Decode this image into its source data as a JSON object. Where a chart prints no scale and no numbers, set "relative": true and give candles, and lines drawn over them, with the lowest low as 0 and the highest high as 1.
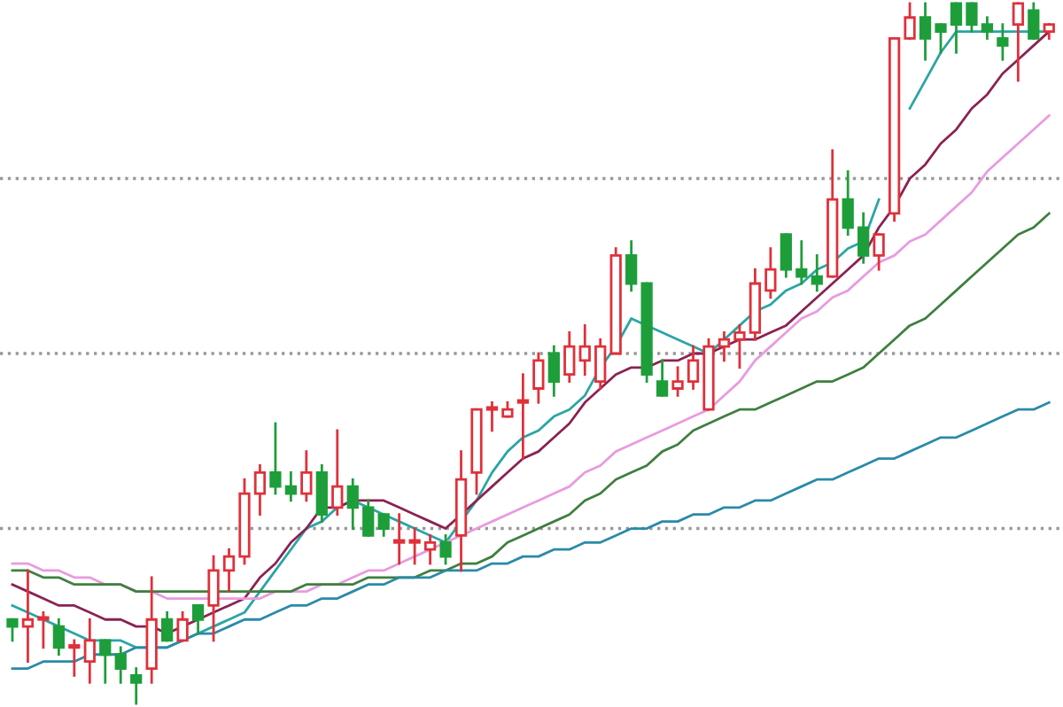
{
  "chart_data": {
    "type": "candlestick",
    "relative": true,
    "categories": [
      null,
      null,
      null,
      null,
      null,
      null,
      null,
      null,
      null,
      null,
      null,
      null,
      null,
      null,
      null,
      null,
      null,
      null,
      null,
      null,
      null,
      null,
      null,
      null,
      null,
      null,
      null,
      null,
      null,
      null,
      null,
      null,
      null,
      null,
      null,
      null,
      null,
      null,
      null,
      null,
      null,
      null,
      null,
      null,
      null,
      null,
      null,
      null,
      null,
      null,
      null,
      null,
      null,
      null,
      null,
      null,
      null,
      null,
      null,
      null,
      null,
      null,
      null,
      null,
      null,
      null,
      null,
      null
    ],
    "colors": [
      "#1e9e3a",
      "#e0303a",
      "#e0303a",
      "#1e9e3a",
      "#e0303a",
      "#e0303a",
      "#1e9e3a",
      "#1e9e3a",
      "#1e9e3a",
      "#e0303a",
      "#1e9e3a",
      "#e0303a",
      "#1e9e3a",
      "#e0303a",
      "#e0303a",
      "#e0303a",
      "#e0303a",
      "#1e9e3a",
      "#1e9e3a",
      "#e0303a",
      "#1e9e3a",
      "#e0303a",
      "#1e9e3a",
      "#1e9e3a",
      "#1e9e3a",
      "#e0303a",
      "#e0303a",
      "#e0303a",
      "#1e9e3a",
      "#e0303a",
      "#e0303a",
      "#e0303a",
      "#e0303a",
      "#e0303a",
      "#e0303a",
      "#1e9e3a",
      "#e0303a",
      "#e0303a",
      "#e0303a",
      "#e0303a",
      "#1e9e3a",
      "#1e9e3a",
      "#1e9e3a",
      "#e0303a",
      "#e0303a",
      "#e0303a",
      "#e0303a",
      "#e0303a",
      "#e0303a",
      "#e0303a",
      "#1e9e3a",
      "#1e9e3a",
      "#1e9e3a",
      "#e0303a",
      "#1e9e3a",
      "#1e9e3a",
      "#e0303a",
      "#e0303a",
      "#e0303a",
      "#1e9e3a",
      "#1e9e3a",
      "#1e9e3a",
      "#1e9e3a",
      "#1e9e3a",
      "#1e9e3a",
      "#e0303a",
      "#1e9e3a",
      "#e0303a"
    ],
    "ohlc": [
      [
        0.12,
        0.12,
        0.09,
        0.11
      ],
      [
        0.11,
        0.19,
        0.06,
        0.12
      ],
      [
        0.12,
        0.13,
        0.08,
        0.12
      ],
      [
        0.11,
        0.12,
        0.07,
        0.08
      ],
      [
        0.08,
        0.09,
        0.04,
        0.08
      ],
      [
        0.06,
        0.12,
        0.03,
        0.09
      ],
      [
        0.09,
        0.09,
        0.03,
        0.07
      ],
      [
        0.07,
        0.08,
        0.03,
        0.05
      ],
      [
        0.04,
        0.05,
        0.0,
        0.03
      ],
      [
        0.05,
        0.18,
        0.03,
        0.12
      ],
      [
        0.12,
        0.13,
        0.09,
        0.09
      ],
      [
        0.09,
        0.13,
        0.09,
        0.12
      ],
      [
        0.14,
        0.14,
        0.1,
        0.12
      ],
      [
        0.14,
        0.21,
        0.09,
        0.19
      ],
      [
        0.19,
        0.22,
        0.16,
        0.21
      ],
      [
        0.21,
        0.32,
        0.2,
        0.3
      ],
      [
        0.3,
        0.34,
        0.27,
        0.33
      ],
      [
        0.33,
        0.4,
        0.3,
        0.31
      ],
      [
        0.31,
        0.33,
        0.29,
        0.3
      ],
      [
        0.3,
        0.36,
        0.29,
        0.33
      ],
      [
        0.33,
        0.34,
        0.26,
        0.27
      ],
      [
        0.28,
        0.39,
        0.27,
        0.31
      ],
      [
        0.31,
        0.32,
        0.25,
        0.28
      ],
      [
        0.28,
        0.29,
        0.24,
        0.24
      ],
      [
        0.27,
        0.27,
        0.24,
        0.25
      ],
      [
        0.23,
        0.27,
        0.2,
        0.23
      ],
      [
        0.23,
        0.25,
        0.2,
        0.23
      ],
      [
        0.22,
        0.24,
        0.2,
        0.23
      ],
      [
        0.23,
        0.24,
        0.2,
        0.21
      ],
      [
        0.24,
        0.36,
        0.19,
        0.32
      ],
      [
        0.33,
        0.42,
        0.3,
        0.42
      ],
      [
        0.42,
        0.43,
        0.39,
        0.42
      ],
      [
        0.41,
        0.43,
        0.41,
        0.42
      ],
      [
        0.43,
        0.47,
        0.35,
        0.43
      ],
      [
        0.45,
        0.5,
        0.43,
        0.49
      ],
      [
        0.5,
        0.51,
        0.44,
        0.46
      ],
      [
        0.47,
        0.53,
        0.46,
        0.51
      ],
      [
        0.49,
        0.54,
        0.47,
        0.51
      ],
      [
        0.46,
        0.52,
        0.45,
        0.51
      ],
      [
        0.5,
        0.65,
        0.5,
        0.64
      ],
      [
        0.64,
        0.66,
        0.59,
        0.6
      ],
      [
        0.6,
        0.6,
        0.46,
        0.47
      ],
      [
        0.46,
        0.49,
        0.44,
        0.44
      ],
      [
        0.45,
        0.48,
        0.44,
        0.46
      ],
      [
        0.46,
        0.51,
        0.45,
        0.49
      ],
      [
        0.42,
        0.52,
        0.42,
        0.51
      ],
      [
        0.51,
        0.53,
        0.49,
        0.52
      ],
      [
        0.52,
        0.54,
        0.48,
        0.53
      ],
      [
        0.53,
        0.62,
        0.52,
        0.6
      ],
      [
        0.59,
        0.65,
        0.58,
        0.62
      ],
      [
        0.67,
        0.67,
        0.61,
        0.62
      ],
      [
        0.62,
        0.66,
        0.6,
        0.61
      ],
      [
        0.61,
        0.64,
        0.59,
        0.6
      ],
      [
        0.61,
        0.79,
        0.61,
        0.72
      ],
      [
        0.72,
        0.76,
        0.67,
        0.68
      ],
      [
        0.68,
        0.7,
        0.63,
        0.64
      ],
      [
        0.64,
        0.67,
        0.62,
        0.67
      ],
      [
        0.7,
        0.95,
        0.69,
        0.95
      ],
      [
        0.95,
        1.0,
        0.95,
        0.98
      ],
      [
        0.98,
        1.0,
        0.92,
        0.95
      ],
      [
        0.97,
        0.97,
        0.93,
        0.96
      ],
      [
        1.0,
        1.0,
        0.93,
        0.97
      ],
      [
        1.0,
        1.0,
        0.96,
        0.97
      ],
      [
        0.97,
        0.98,
        0.95,
        0.96
      ],
      [
        0.95,
        0.97,
        0.92,
        0.94
      ],
      [
        0.97,
        1.0,
        0.89,
        1.0
      ],
      [
        0.99,
        1.0,
        0.95,
        0.95
      ],
      [
        0.96,
        0.97,
        0.95,
        0.97
      ]
    ],
    "series": [
      {
        "type": "line",
        "color": "#2aa5a5",
        "values": [
          0.14,
          0.13,
          0.12,
          0.11,
          0.1,
          0.09,
          0.09,
          0.09,
          0.08,
          0.08,
          0.08,
          0.09,
          0.1,
          0.11,
          0.12,
          0.13,
          0.16,
          0.19,
          0.22,
          0.25,
          0.26,
          0.28,
          0.29,
          0.28,
          0.27,
          0.26,
          0.25,
          0.24,
          0.23,
          0.26,
          0.29,
          0.33,
          0.36,
          0.38,
          0.39,
          0.41,
          0.42,
          0.44,
          0.48,
          0.51,
          0.55,
          0.54,
          0.53,
          0.52,
          0.51,
          0.5,
          0.52,
          0.54,
          0.56,
          0.57,
          0.59,
          0.6,
          0.62,
          0.63,
          0.65,
          0.66,
          0.72,
          null,
          0.85,
          0.89,
          0.93,
          0.96,
          0.96,
          0.96,
          0.96,
          0.96,
          0.96,
          0.96
        ]
      },
      {
        "type": "line",
        "color": "#8b2252",
        "values": [
          0.17,
          0.16,
          0.15,
          0.14,
          0.14,
          0.13,
          0.12,
          0.12,
          0.11,
          0.11,
          0.1,
          0.11,
          0.12,
          0.13,
          0.14,
          0.15,
          0.18,
          0.2,
          0.23,
          0.25,
          0.28,
          0.28,
          0.29,
          0.29,
          0.29,
          0.28,
          0.27,
          0.26,
          0.25,
          0.27,
          0.29,
          0.31,
          0.33,
          0.35,
          0.36,
          0.38,
          0.4,
          0.43,
          0.45,
          0.47,
          0.48,
          0.48,
          0.49,
          0.49,
          0.5,
          0.5,
          0.51,
          0.52,
          0.52,
          0.53,
          0.54,
          0.56,
          0.58,
          0.6,
          0.62,
          0.64,
          0.68,
          0.71,
          0.75,
          0.77,
          0.8,
          0.82,
          0.85,
          0.87,
          0.9,
          0.92,
          0.94,
          0.96
        ]
      },
      {
        "type": "line",
        "color": "#e89be0",
        "values": [
          0.2,
          0.2,
          0.19,
          0.19,
          0.18,
          0.18,
          0.17,
          0.17,
          0.16,
          0.16,
          0.15,
          0.15,
          0.15,
          0.15,
          0.15,
          0.15,
          0.15,
          0.16,
          0.16,
          0.16,
          0.17,
          0.17,
          0.18,
          0.19,
          0.19,
          0.2,
          0.21,
          0.22,
          0.23,
          0.24,
          0.25,
          0.26,
          0.27,
          0.28,
          0.29,
          0.3,
          0.31,
          0.33,
          0.34,
          0.36,
          0.37,
          0.38,
          0.39,
          0.4,
          0.41,
          0.42,
          0.44,
          0.46,
          0.49,
          0.51,
          0.53,
          0.55,
          0.56,
          0.58,
          0.59,
          0.61,
          0.63,
          0.64,
          0.66,
          0.67,
          0.69,
          0.71,
          0.73,
          0.76,
          0.78,
          0.8,
          0.82,
          0.84
        ]
      },
      {
        "type": "line",
        "color": "#3f7f3f",
        "values": [
          0.19,
          0.19,
          0.18,
          0.18,
          0.17,
          0.17,
          0.17,
          0.17,
          0.16,
          0.16,
          0.16,
          0.16,
          0.16,
          0.16,
          0.16,
          0.16,
          0.16,
          0.16,
          0.16,
          0.17,
          0.17,
          0.17,
          0.17,
          0.18,
          0.18,
          0.18,
          0.18,
          0.19,
          0.19,
          0.2,
          0.2,
          0.21,
          0.23,
          0.24,
          0.25,
          0.26,
          0.27,
          0.29,
          0.3,
          0.32,
          0.33,
          0.34,
          0.36,
          0.37,
          0.39,
          0.4,
          0.41,
          0.42,
          0.42,
          0.43,
          0.44,
          0.45,
          0.46,
          0.46,
          0.47,
          0.48,
          0.5,
          0.52,
          0.54,
          0.55,
          0.57,
          0.59,
          0.61,
          0.63,
          0.65,
          0.67,
          0.68,
          0.7
        ]
      },
      {
        "type": "line",
        "color": "#2a8aa8",
        "values": [
          0.05,
          0.05,
          0.06,
          0.06,
          0.06,
          0.07,
          0.07,
          0.07,
          0.08,
          0.08,
          0.08,
          0.09,
          0.1,
          0.1,
          0.11,
          0.12,
          0.12,
          0.13,
          0.14,
          0.14,
          0.15,
          0.15,
          0.16,
          0.17,
          0.17,
          0.18,
          0.18,
          0.18,
          0.19,
          0.19,
          0.19,
          0.2,
          0.2,
          0.21,
          0.21,
          0.22,
          0.22,
          0.23,
          0.23,
          0.24,
          0.25,
          0.25,
          0.26,
          0.26,
          0.27,
          0.27,
          0.28,
          0.28,
          0.29,
          0.29,
          0.3,
          0.31,
          0.32,
          0.32,
          0.33,
          0.34,
          0.35,
          0.35,
          0.36,
          0.37,
          0.38,
          0.38,
          0.39,
          0.4,
          0.41,
          0.42,
          0.42,
          0.43
        ]
      }
    ],
    "ref_lines": [
      {
        "axis": "y",
        "value": 0.75,
        "color": "#999999",
        "line_style": "dotted"
      },
      {
        "axis": "y",
        "value": 0.5,
        "color": "#999999",
        "line_style": "dotted"
      },
      {
        "axis": "y",
        "value": 0.25,
        "color": "#999999",
        "line_style": "dotted"
      }
    ]
  }
}
